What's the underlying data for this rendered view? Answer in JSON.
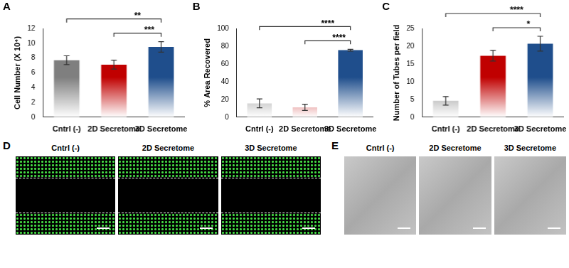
{
  "chart_data": [
    {
      "panel": "A",
      "type": "bar",
      "y_label": "Cell Number (X 10⁴)",
      "categories": [
        "Cntrl (-)",
        "2D Secretome",
        "3D Secretome"
      ],
      "values": [
        7.7,
        7.1,
        9.5
      ],
      "errors": [
        0.6,
        0.6,
        0.7
      ],
      "colors": [
        "#7f7f7f",
        "#c00000",
        "#1f4e8c"
      ],
      "ylim": [
        0,
        12
      ],
      "yticks": [
        0,
        2,
        4,
        6,
        8,
        10,
        12
      ],
      "grid": false,
      "significance": [
        {
          "pair": [
            "Cntrl (-)",
            "3D Secretome"
          ],
          "label": "**"
        },
        {
          "pair": [
            "2D Secretome",
            "3D Secretome"
          ],
          "label": "***"
        }
      ]
    },
    {
      "panel": "B",
      "type": "bar",
      "y_label": "% Area Recovered",
      "categories": [
        "Cntrl (-)",
        "2D Secretome",
        "3D Secretome"
      ],
      "values": [
        15.5,
        11,
        75.5
      ],
      "errors": [
        5,
        3.5,
        1
      ],
      "colors": [
        "#7f7f7f",
        "#c00000",
        "#1f4e8c"
      ],
      "ylim": [
        0,
        100
      ],
      "yticks": [
        0,
        20,
        40,
        60,
        80,
        100
      ],
      "grid": false,
      "significance": [
        {
          "pair": [
            "Cntrl (-)",
            "3D Secretome"
          ],
          "label": "****"
        },
        {
          "pair": [
            "2D Secretome",
            "3D Secretome"
          ],
          "label": "****"
        }
      ]
    },
    {
      "panel": "C",
      "type": "bar",
      "y_label": "Number of Tubes per field",
      "categories": [
        "Cntrl (-)",
        "2D Secretome",
        "3D Secretome"
      ],
      "values": [
        4.6,
        17.3,
        20.7
      ],
      "errors": [
        1.2,
        1.5,
        2.1
      ],
      "colors": [
        "#7f7f7f",
        "#c00000",
        "#1f4e8c"
      ],
      "ylim": [
        0,
        25
      ],
      "yticks": [
        0,
        5,
        10,
        15,
        20,
        25
      ],
      "grid": false,
      "significance": [
        {
          "pair": [
            "Cntrl (-)",
            "3D Secretome"
          ],
          "label": "****"
        },
        {
          "pair": [
            "2D Secretome",
            "3D Secretome"
          ],
          "label": "*"
        }
      ]
    }
  ],
  "image_panels": [
    {
      "panel": "D",
      "style": "fluorescence",
      "labels": [
        "Cntrl (-)",
        "2D Secretome",
        "3D Secretome"
      ]
    },
    {
      "panel": "E",
      "style": "brightfield",
      "labels": [
        "Cntrl (-)",
        "2D Secretome",
        "3D Secretome"
      ]
    }
  ]
}
